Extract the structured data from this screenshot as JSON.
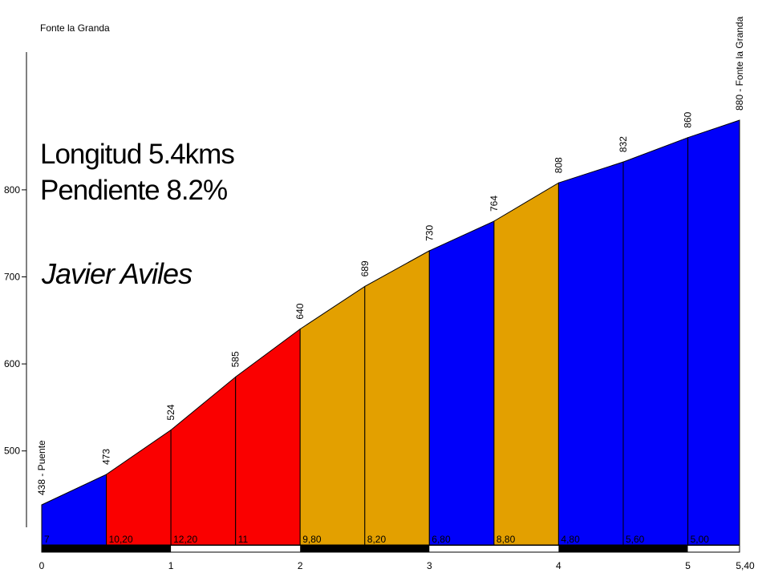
{
  "title": "Fonte la Granda",
  "annotations": {
    "length": "Longitud 5.4kms",
    "gradient": "Pendiente 8.2%",
    "author": "Javier Aviles"
  },
  "chart_data": {
    "type": "area",
    "title": "Fonte la Granda",
    "xlabel": "",
    "ylabel": "",
    "xlim_km": [
      0,
      5.4
    ],
    "x_km": [
      0,
      0.5,
      1,
      1.5,
      2,
      2.5,
      3,
      3.5,
      4,
      4.5,
      5,
      5.4
    ],
    "elevations_m": [
      438,
      473,
      524,
      585,
      640,
      689,
      730,
      764,
      808,
      832,
      860,
      880
    ],
    "point_labels": [
      "438 - Puente",
      "473",
      "524",
      "585",
      "640",
      "689",
      "730",
      "764",
      "808",
      "832",
      "860",
      "880 - Fonte la Granda"
    ],
    "segments": [
      {
        "start_km": 0,
        "end_km": 0.5,
        "grade_label": "7",
        "color": "blue"
      },
      {
        "start_km": 0.5,
        "end_km": 1,
        "grade_label": "10,20",
        "color": "red"
      },
      {
        "start_km": 1,
        "end_km": 1.5,
        "grade_label": "12,20",
        "color": "red"
      },
      {
        "start_km": 1.5,
        "end_km": 2,
        "grade_label": "11",
        "color": "red"
      },
      {
        "start_km": 2,
        "end_km": 2.5,
        "grade_label": "9,80",
        "color": "orange"
      },
      {
        "start_km": 2.5,
        "end_km": 3,
        "grade_label": "8,20",
        "color": "orange"
      },
      {
        "start_km": 3,
        "end_km": 3.5,
        "grade_label": "6,80",
        "color": "blue"
      },
      {
        "start_km": 3.5,
        "end_km": 4,
        "grade_label": "8,80",
        "color": "orange"
      },
      {
        "start_km": 4,
        "end_km": 4.5,
        "grade_label": "4,80",
        "color": "blue"
      },
      {
        "start_km": 4.5,
        "end_km": 5,
        "grade_label": "5,60",
        "color": "blue"
      },
      {
        "start_km": 5,
        "end_km": 5.4,
        "grade_label": "5,00",
        "color": "blue"
      }
    ],
    "y_ticks": [
      "500",
      "600",
      "700",
      "800"
    ],
    "y_tick_values": [
      500,
      600,
      700,
      800
    ],
    "x_ticks": [
      "0",
      "1",
      "2",
      "3",
      "4",
      "5",
      "5,40"
    ],
    "x_tick_km": [
      0,
      1,
      2,
      3,
      4,
      5,
      5.4
    ],
    "colors": {
      "blue": "#0000FA",
      "red": "#FA0000",
      "orange": "#E3A000",
      "axis": "#000000",
      "bar_black": "#000000",
      "bar_white": "#FFFFFF"
    },
    "grid": false,
    "legend": false
  }
}
